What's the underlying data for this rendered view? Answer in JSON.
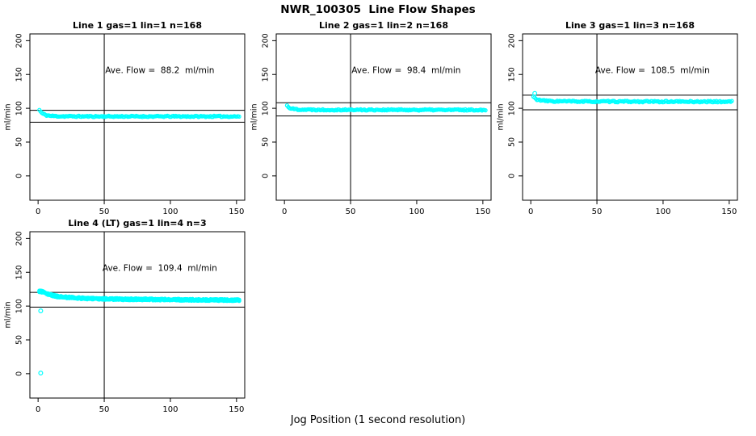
{
  "main_title": "NWR_100305  Line Flow Shapes",
  "x_axis_caption": "Jog Position (1 second resolution)",
  "colors": {
    "marker": "#00ffff",
    "line": "#000000",
    "background": "#ffffff"
  },
  "chart_data": [
    {
      "type": "scatter",
      "title": "Line 1 gas=1 lin=1 n=168",
      "ylabel": "ml/min",
      "annotation": "Ave. Flow =  88.2  ml/min",
      "ave_flow_ml_min": 88.2,
      "n_points": 168,
      "grid_pos": {
        "row": 0,
        "col": 0
      },
      "xlim": [
        -6.2,
        156.2
      ],
      "ylim": [
        -36,
        210
      ],
      "xticks": [
        "0",
        "50",
        "100",
        "150"
      ],
      "yticks": [
        "0",
        "50",
        "100",
        "150",
        "200"
      ],
      "vline_x": 50,
      "hlines": [
        97.0,
        79.4
      ],
      "profile": [
        [
          1,
          97.5
        ],
        [
          3,
          92.5
        ],
        [
          6,
          89.8
        ],
        [
          10,
          88.7
        ],
        [
          16,
          88.2
        ],
        [
          40,
          88.0
        ],
        [
          152,
          88.0
        ]
      ],
      "noise": 0.9,
      "passes": 1,
      "outliers": [],
      "annotation_pos": [
        92,
        152
      ],
      "seed": 11
    },
    {
      "type": "scatter",
      "title": "Line 2 gas=1 lin=2 n=168",
      "ylabel": "ml/min",
      "annotation": "Ave. Flow =  98.4  ml/min",
      "ave_flow_ml_min": 98.4,
      "n_points": 168,
      "grid_pos": {
        "row": 0,
        "col": 1
      },
      "xlim": [
        -6.2,
        156.2
      ],
      "ylim": [
        -36,
        210
      ],
      "xticks": [
        "0",
        "50",
        "100",
        "150"
      ],
      "yticks": [
        "0",
        "50",
        "100",
        "150",
        "200"
      ],
      "vline_x": 50,
      "hlines": [
        108.2,
        88.6
      ],
      "profile": [
        [
          2,
          104.0
        ],
        [
          4,
          100.5
        ],
        [
          7,
          99.0
        ],
        [
          12,
          98.2
        ],
        [
          30,
          97.8
        ],
        [
          152,
          97.6
        ]
      ],
      "noise": 1.0,
      "passes": 1,
      "outliers": [],
      "annotation_pos": [
        92,
        152
      ],
      "seed": 22
    },
    {
      "type": "scatter",
      "title": "Line 3 gas=1 lin=3 n=168",
      "ylabel": "ml/min",
      "annotation": "Ave. Flow =  108.5  ml/min",
      "ave_flow_ml_min": 108.5,
      "n_points": 168,
      "grid_pos": {
        "row": 0,
        "col": 2
      },
      "xlim": [
        -6.2,
        156.2
      ],
      "ylim": [
        -36,
        210
      ],
      "xticks": [
        "0",
        "50",
        "100",
        "150"
      ],
      "yticks": [
        "0",
        "50",
        "100",
        "150",
        "200"
      ],
      "vline_x": 50,
      "hlines": [
        119.4,
        97.7
      ],
      "profile": [
        [
          2,
          117.0
        ],
        [
          4,
          113.5
        ],
        [
          8,
          111.5
        ],
        [
          15,
          110.5
        ],
        [
          40,
          110.0
        ],
        [
          152,
          109.8
        ]
      ],
      "noise": 1.0,
      "passes": 1,
      "outliers": [
        [
          3,
          122
        ]
      ],
      "annotation_pos": [
        92,
        152
      ],
      "seed": 33
    },
    {
      "type": "scatter",
      "title": "Line 4 (LT) gas=1 lin=4 n=3",
      "ylabel": "ml/min",
      "annotation": "Ave. Flow =  109.4  ml/min",
      "ave_flow_ml_min": 109.4,
      "n_points": 168,
      "grid_pos": {
        "row": 1,
        "col": 0
      },
      "xlim": [
        -6.2,
        156.2
      ],
      "ylim": [
        -36,
        210
      ],
      "xticks": [
        "0",
        "50",
        "100",
        "150"
      ],
      "yticks": [
        "0",
        "50",
        "100",
        "150",
        "200"
      ],
      "vline_x": 50,
      "hlines": [
        120.3,
        98.5
      ],
      "profile": [
        [
          1,
          122.0
        ],
        [
          4,
          121.0
        ],
        [
          8,
          117.5
        ],
        [
          14,
          114.5
        ],
        [
          22,
          112.8
        ],
        [
          35,
          111.5
        ],
        [
          60,
          110.3
        ],
        [
          90,
          109.8
        ],
        [
          120,
          109.2
        ],
        [
          152,
          108.8
        ]
      ],
      "noise": 1.3,
      "passes": 3,
      "outliers": [
        [
          2,
          93
        ],
        [
          2,
          1
        ]
      ],
      "annotation_pos": [
        92,
        152
      ],
      "seed": 44
    }
  ]
}
